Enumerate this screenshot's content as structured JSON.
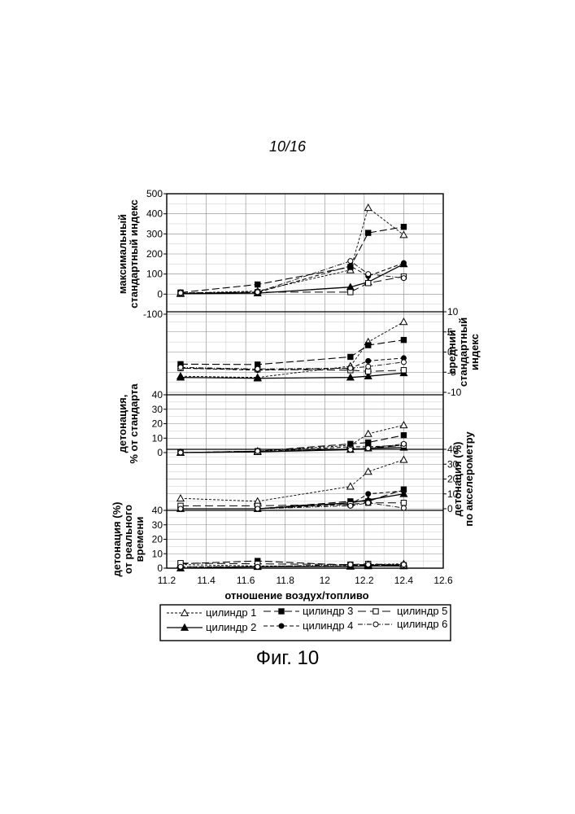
{
  "page": {
    "page_number": "10/16",
    "figure_caption": "Фиг. 10"
  },
  "chart_data": {
    "type": "line",
    "x": [
      11.27,
      11.66,
      12.13,
      12.22,
      12.4
    ],
    "xlim": [
      11.2,
      12.6
    ],
    "xticks": [
      "11.2",
      "11.4",
      "11.6",
      "11.8",
      "12",
      "12.2",
      "12.4",
      "12.6"
    ],
    "xlabel": "отношение воздух/топливо",
    "grid": true,
    "legend_position": "bottom",
    "series_names": [
      "цилиндр 1",
      "цилиндр 2",
      "цилиндр 3",
      "цилиндр 4",
      "цилиндр 5",
      "цилиндр 6"
    ],
    "panels": [
      {
        "ylabel": [
          "максимальный",
          "стандартный индекс"
        ],
        "axis_side": "left",
        "ylim": [
          -100,
          500
        ],
        "yticks": [
          "-100",
          "0",
          "100",
          "200",
          "300",
          "400",
          "500"
        ],
        "series": [
          {
            "name": "цилиндр 1",
            "values": [
              5,
              15,
              120,
              430,
              295
            ]
          },
          {
            "name": "цилиндр 2",
            "values": [
              2,
              5,
              35,
              60,
              150
            ]
          },
          {
            "name": "цилиндр 3",
            "values": [
              8,
              48,
              135,
              305,
              335
            ]
          },
          {
            "name": "цилиндр 4",
            "values": [
              3,
              8,
              140,
              90,
              155
            ]
          },
          {
            "name": "цилиндр 5",
            "values": [
              4,
              10,
              10,
              55,
              88
            ]
          },
          {
            "name": "цилиндр 6",
            "values": [
              6,
              10,
              165,
              100,
              80
            ]
          }
        ]
      },
      {
        "ylabel": [
          "средний",
          "стандартный",
          "индекс"
        ],
        "axis_side": "right",
        "ylim": [
          -10,
          10
        ],
        "yticks": [
          "-10",
          "-5",
          "0",
          "5",
          "10"
        ],
        "series": [
          {
            "name": "цилиндр 1",
            "values": [
              -6,
              -6.3,
              -3.5,
              2.5,
              7.5
            ]
          },
          {
            "name": "цилиндр 2",
            "values": [
              -6.3,
              -6.5,
              -6.3,
              -6,
              -5.2
            ]
          },
          {
            "name": "цилиндр 3",
            "values": [
              -3,
              -3.1,
              -1.2,
              1.7,
              3
            ]
          },
          {
            "name": "цилиндр 4",
            "values": [
              -4,
              -4.5,
              -4,
              -2.2,
              -1.5
            ]
          },
          {
            "name": "цилиндр 5",
            "values": [
              -4,
              -4.3,
              -4.5,
              -4.8,
              -4.5
            ]
          },
          {
            "name": "цилиндр 6",
            "values": [
              -3.8,
              -4.2,
              -4,
              -3.6,
              -2.5
            ]
          }
        ]
      },
      {
        "ylabel": [
          "детонация,",
          "% от стандарта"
        ],
        "axis_side": "left",
        "ylim": [
          0,
          40
        ],
        "yticks": [
          "0",
          "10",
          "20",
          "30",
          "40"
        ],
        "series": [
          {
            "name": "цилиндр 1",
            "values": [
              0,
              1,
              5,
              13,
              19
            ]
          },
          {
            "name": "цилиндр 2",
            "values": [
              0,
              0.5,
              2,
              3,
              3.5
            ]
          },
          {
            "name": "цилиндр 3",
            "values": [
              0,
              1,
              6,
              7,
              12
            ]
          },
          {
            "name": "цилиндр 4",
            "values": [
              0,
              0.5,
              4,
              4,
              5
            ]
          },
          {
            "name": "цилиндр 5",
            "values": [
              0,
              0.5,
              2.5,
              3,
              5
            ]
          },
          {
            "name": "цилиндр 6",
            "values": [
              0,
              1,
              2,
              3,
              6
            ]
          }
        ]
      },
      {
        "ylabel": [
          "детонация (%)",
          "по акселерометру"
        ],
        "axis_side": "right",
        "ylim": [
          0,
          40
        ],
        "yticks": [
          "0",
          "10",
          "20",
          "30",
          "40"
        ],
        "series": [
          {
            "name": "цилиндр 1",
            "values": [
              7,
              5,
              15,
              25,
              33
            ]
          },
          {
            "name": "цилиндр 2",
            "values": [
              0,
              0,
              4,
              6,
              10
            ]
          },
          {
            "name": "цилиндр 3",
            "values": [
              0,
              0,
              5,
              5,
              13
            ]
          },
          {
            "name": "цилиндр 4",
            "values": [
              0,
              0,
              3,
              10,
              12
            ]
          },
          {
            "name": "цилиндр 5",
            "values": [
              2,
              2,
              3,
              4,
              4
            ]
          },
          {
            "name": "цилиндр 6",
            "values": [
              0,
              0,
              2,
              4,
              0.5
            ]
          }
        ]
      },
      {
        "ylabel": [
          "детонация (%)",
          "от реального",
          "времени"
        ],
        "axis_side": "left",
        "ylim": [
          0,
          40
        ],
        "yticks": [
          "0",
          "10",
          "20",
          "30",
          "40"
        ],
        "series": [
          {
            "name": "цилиндр 1",
            "values": [
              2.5,
              1.5,
              1.5,
              2.5,
              3
            ]
          },
          {
            "name": "цилиндр 2",
            "values": [
              0,
              1,
              1.2,
              1.5,
              1.5
            ]
          },
          {
            "name": "цилиндр 3",
            "values": [
              3,
              5,
              2,
              2,
              2
            ]
          },
          {
            "name": "цилиндр 4",
            "values": [
              1,
              1,
              1.5,
              1.5,
              2.5
            ]
          },
          {
            "name": "цилиндр 5",
            "values": [
              3.5,
              3,
              2.5,
              3,
              2
            ]
          },
          {
            "name": "цилиндр 6",
            "values": [
              1,
              1,
              2.5,
              2.5,
              2.5
            ]
          }
        ]
      }
    ]
  }
}
